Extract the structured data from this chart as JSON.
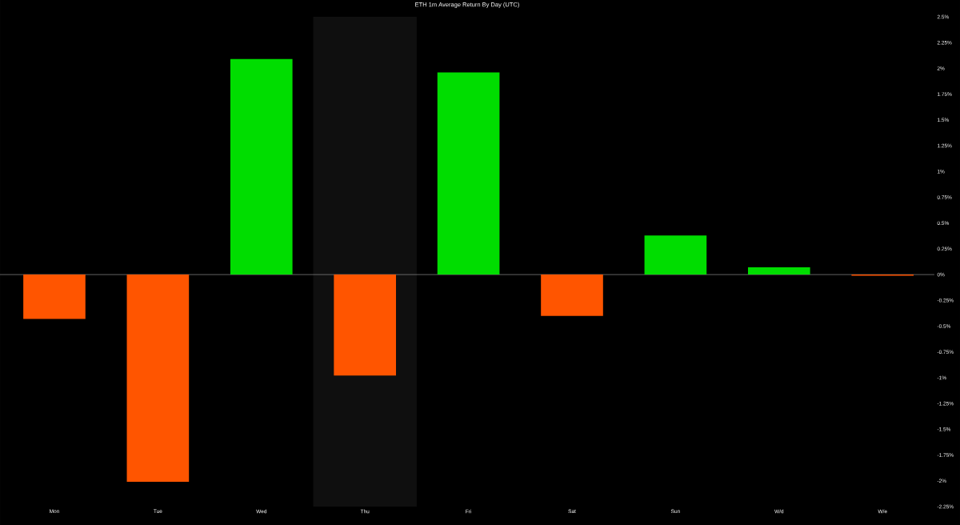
{
  "chart_data": {
    "type": "bar",
    "title": "ETH 1m Average Return By Day (UTC)",
    "categories": [
      "Mon",
      "Tue",
      "Wed",
      "Thu",
      "Fri",
      "Sat",
      "Sun",
      "W/d",
      "W/e"
    ],
    "values": [
      -0.43,
      -2.01,
      2.09,
      -0.98,
      1.96,
      -0.4,
      0.38,
      0.07,
      -0.01
    ],
    "colors": [
      "#ff5500",
      "#ff5500",
      "#00dd00",
      "#ff5500",
      "#00dd00",
      "#ff5500",
      "#00dd00",
      "#00dd00",
      "#ff5500"
    ],
    "ylim": [
      -2.25,
      2.5
    ],
    "yticks": [
      {
        "value": 2.5,
        "label": "2.5%"
      },
      {
        "value": 2.25,
        "label": "2.25%"
      },
      {
        "value": 2,
        "label": "2%"
      },
      {
        "value": 1.75,
        "label": "1.75%"
      },
      {
        "value": 1.5,
        "label": "1.5%"
      },
      {
        "value": 1.25,
        "label": "1.25%"
      },
      {
        "value": 1,
        "label": "1%"
      },
      {
        "value": 0.75,
        "label": "0.75%"
      },
      {
        "value": 0.5,
        "label": "0.5%"
      },
      {
        "value": 0.25,
        "label": "0.25%"
      },
      {
        "value": 0,
        "label": "0%"
      },
      {
        "value": -0.25,
        "label": "-0.25%"
      },
      {
        "value": -0.5,
        "label": "-0.5%"
      },
      {
        "value": -0.75,
        "label": "-0.75%"
      },
      {
        "value": -1,
        "label": "-1%"
      },
      {
        "value": -1.25,
        "label": "-1.25%"
      },
      {
        "value": -1.5,
        "label": "-1.5%"
      },
      {
        "value": -1.75,
        "label": "-1.75%"
      },
      {
        "value": -2,
        "label": "-2%"
      },
      {
        "value": -2.25,
        "label": "-2.25%"
      }
    ],
    "bands": [
      {
        "axis": "x",
        "from": "Thu",
        "to": "Thu",
        "color": "#0f0f0f"
      }
    ]
  }
}
